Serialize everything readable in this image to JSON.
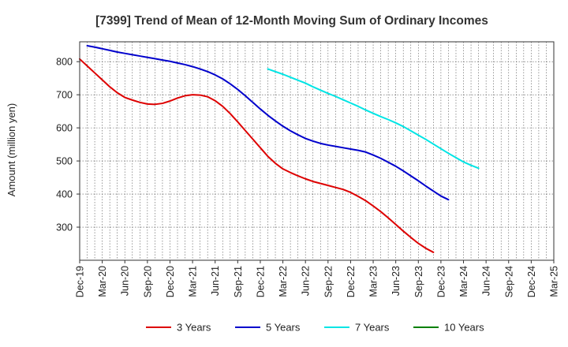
{
  "chart_data": {
    "type": "line",
    "title": "[7399]  Trend of Mean of 12-Month Moving Sum of Ordinary Incomes",
    "xlabel": "",
    "ylabel": "Amount (million yen)",
    "ylim": [
      200,
      860
    ],
    "yticks": [
      300,
      400,
      500,
      600,
      700,
      800
    ],
    "x_tick_labels": [
      "Dec-19",
      "Mar-20",
      "Jun-20",
      "Sep-20",
      "Dec-20",
      "Mar-21",
      "Jun-21",
      "Sep-21",
      "Dec-21",
      "Mar-22",
      "Jun-22",
      "Sep-22",
      "Dec-22",
      "Mar-23",
      "Jun-23",
      "Sep-23",
      "Dec-23",
      "Mar-24",
      "Jun-24",
      "Sep-24",
      "Dec-24",
      "Mar-25"
    ],
    "grid": true,
    "legend_position": "bottom",
    "series": [
      {
        "name": "3 Years",
        "color": "#dd0000",
        "start_index": 0,
        "values": [
          808,
          787,
          766,
          745,
          724,
          706,
          692,
          684,
          677,
          672,
          671,
          674,
          681,
          690,
          697,
          700,
          699,
          694,
          682,
          665,
          643,
          618,
          592,
          566,
          540,
          514,
          493,
          476,
          465,
          455,
          446,
          438,
          432,
          426,
          420,
          414,
          405,
          393,
          380,
          364,
          347,
          328,
          308,
          288,
          269,
          251,
          236,
          224
        ]
      },
      {
        "name": "5 Years",
        "color": "#0000cc",
        "start_index": 1,
        "values": [
          848,
          844,
          839,
          834,
          829,
          825,
          821,
          817,
          813,
          809,
          805,
          801,
          796,
          791,
          785,
          778,
          770,
          760,
          748,
          733,
          716,
          697,
          677,
          657,
          638,
          621,
          605,
          591,
          579,
          568,
          560,
          553,
          548,
          544,
          540,
          536,
          532,
          527,
          518,
          508,
          496,
          484,
          470,
          455,
          440,
          424,
          409,
          394,
          383
        ]
      },
      {
        "name": "7 Years",
        "color": "#00e5e5",
        "start_index": 25,
        "values": [
          778,
          770,
          762,
          753,
          744,
          735,
          724,
          714,
          704,
          695,
          685,
          675,
          665,
          654,
          644,
          634,
          625,
          615,
          604,
          591,
          578,
          565,
          551,
          537,
          523,
          510,
          497,
          487,
          478
        ]
      },
      {
        "name": "10 Years",
        "color": "#008000",
        "start_index": 0,
        "values": []
      }
    ]
  }
}
